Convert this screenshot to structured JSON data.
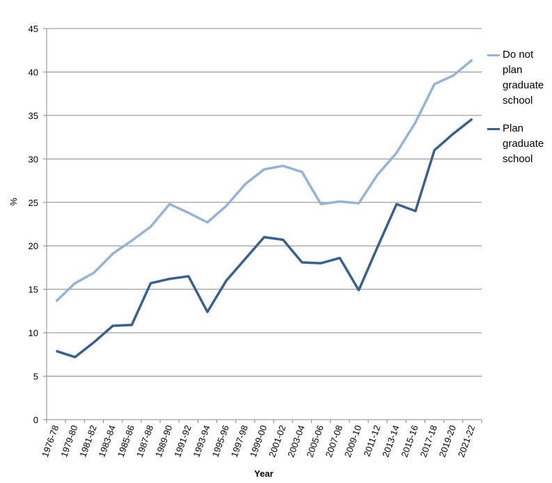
{
  "chart_data": {
    "type": "line",
    "x_label": "Year",
    "y_label": "%",
    "categories": [
      "1976-78",
      "1979-80",
      "1981-82",
      "1983-84",
      "1985-86",
      "1987-88",
      "1989-90",
      "1991-92",
      "1993-94",
      "1995-96",
      "1997-98",
      "1999-00",
      "2001-02",
      "2003-04",
      "2005-06",
      "2007-08",
      "2009-10",
      "2011-12",
      "2013-14",
      "2015-16",
      "2017-18",
      "2019-20",
      "2021-22"
    ],
    "series": [
      {
        "name": "Do not plan graduate school",
        "color": "#95b3d7",
        "values": [
          13.6,
          15.7,
          16.9,
          19.1,
          20.6,
          22.2,
          24.8,
          23.8,
          22.7,
          24.6,
          27.1,
          28.8,
          29.2,
          28.5,
          24.8,
          25.1,
          24.9,
          28.2,
          30.7,
          34.2,
          38.6,
          39.6,
          41.4
        ]
      },
      {
        "name": "Plan graduate school",
        "color": "#376092",
        "values": [
          7.9,
          7.2,
          8.9,
          10.8,
          10.9,
          15.7,
          16.2,
          16.5,
          12.4,
          16.0,
          18.5,
          21.0,
          20.7,
          18.1,
          18.0,
          18.6,
          14.9,
          19.9,
          24.8,
          24.0,
          31.0,
          32.9,
          34.6
        ]
      }
    ],
    "ylim": [
      0,
      45
    ],
    "yticks": [
      0,
      5,
      10,
      15,
      20,
      25,
      30,
      35,
      40,
      45
    ],
    "grid": true,
    "legend": "right"
  }
}
